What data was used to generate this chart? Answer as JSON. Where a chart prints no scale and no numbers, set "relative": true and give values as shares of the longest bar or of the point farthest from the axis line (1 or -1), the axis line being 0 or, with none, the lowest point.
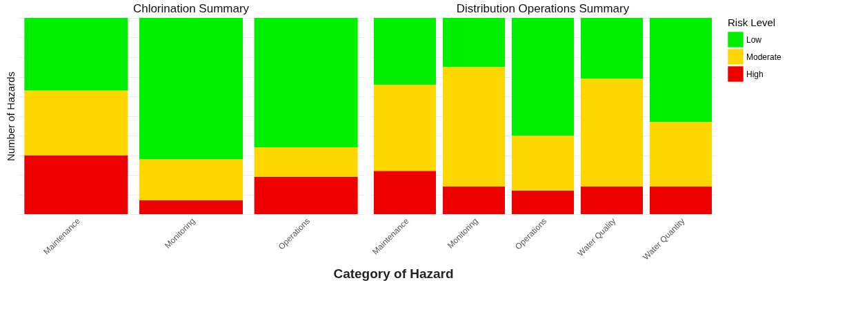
{
  "chart_data": [
    {
      "type": "bar",
      "title": "Chlorination Summary",
      "ylabel": "Number of Hazards",
      "xlabel": "Category of Hazard",
      "categories": [
        "Maintenance",
        "Monitoring",
        "Operations"
      ],
      "stacked": true,
      "relative": true,
      "grid": "y",
      "series": [
        {
          "color": "#ee0000",
          "values": [
            0.3,
            0.07,
            0.19
          ]
        },
        {
          "color": "#ffd700",
          "values": [
            0.33,
            0.21,
            0.15
          ]
        },
        {
          "color": "#00ee00",
          "values": [
            0.37,
            0.72,
            0.66
          ]
        }
      ]
    },
    {
      "type": "bar",
      "title": "Distribution Operations Summary",
      "categories": [
        "Maintenance",
        "Monitoring",
        "Operations",
        "Water Quality",
        "Water Quantity"
      ],
      "stacked": true,
      "relative": true,
      "grid": "y",
      "legend": "right",
      "legend_title": "Risk Level",
      "series": [
        {
          "name": "High",
          "color": "#ee0000",
          "values": [
            0.22,
            0.14,
            0.12,
            0.14,
            0.14
          ]
        },
        {
          "name": "Moderate",
          "color": "#ffd700",
          "values": [
            0.44,
            0.61,
            0.28,
            0.55,
            0.33
          ]
        },
        {
          "name": "Low",
          "color": "#00ee00",
          "values": [
            0.34,
            0.25,
            0.6,
            0.31,
            0.53
          ]
        }
      ]
    }
  ]
}
